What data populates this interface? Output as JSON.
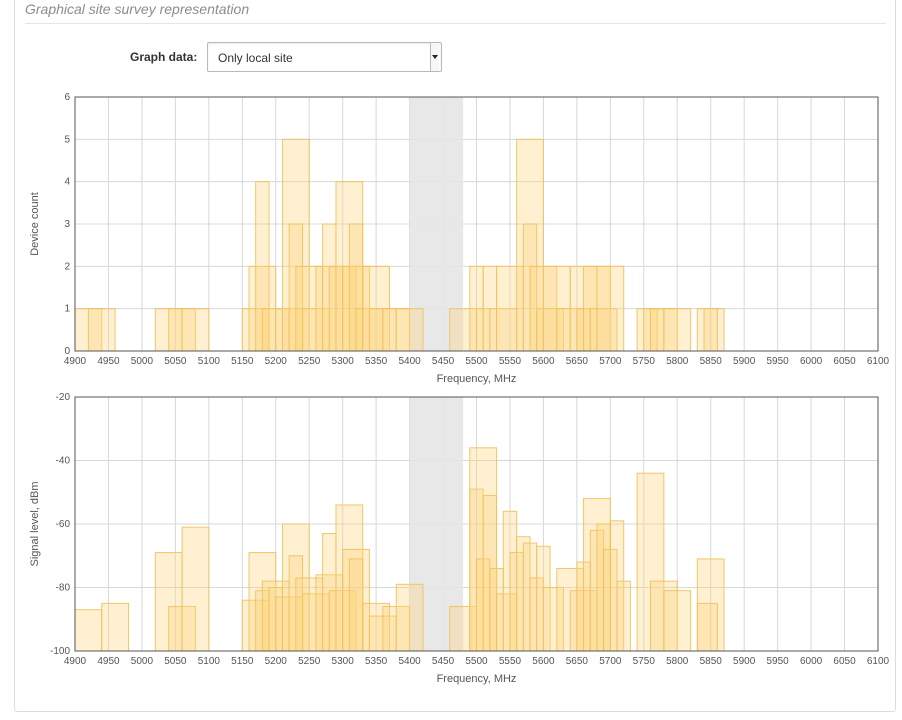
{
  "section_title": "Graphical site survey representation",
  "graph_data": {
    "label": "Graph data:",
    "selected": "Only local site"
  },
  "colors": {
    "bar_fill": "#fbd47a",
    "bar_stroke": "#f1c15a",
    "excluded_band": "#e6e6e6",
    "grid": "#d8d8d8"
  },
  "chart_data": [
    {
      "type": "bar",
      "xlabel": "Frequency, MHz",
      "ylabel": "Device count",
      "xlim": [
        4900,
        6100
      ],
      "ylim": [
        0,
        6
      ],
      "x_ticks": [
        4900,
        4950,
        5000,
        5050,
        5100,
        5150,
        5200,
        5250,
        5300,
        5350,
        5400,
        5450,
        5500,
        5550,
        5600,
        5650,
        5700,
        5750,
        5800,
        5850,
        5900,
        5950,
        6000,
        6050,
        6100
      ],
      "y_ticks": [
        0,
        1,
        2,
        3,
        4,
        5,
        6
      ],
      "grid": true,
      "excluded_band": [
        5400,
        5480
      ],
      "bars": [
        {
          "x0": 4900,
          "x1": 4940,
          "y": 1
        },
        {
          "x0": 4920,
          "x1": 4960,
          "y": 1
        },
        {
          "x0": 5020,
          "x1": 5060,
          "y": 1
        },
        {
          "x0": 5040,
          "x1": 5080,
          "y": 1
        },
        {
          "x0": 5060,
          "x1": 5100,
          "y": 1
        },
        {
          "x0": 5150,
          "x1": 5190,
          "y": 1
        },
        {
          "x0": 5160,
          "x1": 5200,
          "y": 2
        },
        {
          "x0": 5170,
          "x1": 5190,
          "y": 4
        },
        {
          "x0": 5180,
          "x1": 5220,
          "y": 1
        },
        {
          "x0": 5200,
          "x1": 5240,
          "y": 1
        },
        {
          "x0": 5210,
          "x1": 5250,
          "y": 5
        },
        {
          "x0": 5220,
          "x1": 5240,
          "y": 3
        },
        {
          "x0": 5230,
          "x1": 5270,
          "y": 2
        },
        {
          "x0": 5240,
          "x1": 5280,
          "y": 1
        },
        {
          "x0": 5260,
          "x1": 5300,
          "y": 2
        },
        {
          "x0": 5270,
          "x1": 5290,
          "y": 3
        },
        {
          "x0": 5280,
          "x1": 5320,
          "y": 2
        },
        {
          "x0": 5290,
          "x1": 5330,
          "y": 4
        },
        {
          "x0": 5300,
          "x1": 5340,
          "y": 2
        },
        {
          "x0": 5310,
          "x1": 5330,
          "y": 3
        },
        {
          "x0": 5320,
          "x1": 5360,
          "y": 1
        },
        {
          "x0": 5330,
          "x1": 5370,
          "y": 2
        },
        {
          "x0": 5340,
          "x1": 5380,
          "y": 1
        },
        {
          "x0": 5360,
          "x1": 5400,
          "y": 1
        },
        {
          "x0": 5380,
          "x1": 5420,
          "y": 1
        },
        {
          "x0": 5460,
          "x1": 5500,
          "y": 1
        },
        {
          "x0": 5490,
          "x1": 5510,
          "y": 2
        },
        {
          "x0": 5500,
          "x1": 5520,
          "y": 1
        },
        {
          "x0": 5510,
          "x1": 5530,
          "y": 2
        },
        {
          "x0": 5520,
          "x1": 5560,
          "y": 1
        },
        {
          "x0": 5530,
          "x1": 5570,
          "y": 2
        },
        {
          "x0": 5560,
          "x1": 5600,
          "y": 5
        },
        {
          "x0": 5570,
          "x1": 5590,
          "y": 3
        },
        {
          "x0": 5580,
          "x1": 5620,
          "y": 2
        },
        {
          "x0": 5590,
          "x1": 5630,
          "y": 1
        },
        {
          "x0": 5600,
          "x1": 5640,
          "y": 2
        },
        {
          "x0": 5620,
          "x1": 5660,
          "y": 1
        },
        {
          "x0": 5640,
          "x1": 5680,
          "y": 2
        },
        {
          "x0": 5650,
          "x1": 5670,
          "y": 1
        },
        {
          "x0": 5660,
          "x1": 5700,
          "y": 2
        },
        {
          "x0": 5670,
          "x1": 5710,
          "y": 1
        },
        {
          "x0": 5680,
          "x1": 5720,
          "y": 2
        },
        {
          "x0": 5740,
          "x1": 5780,
          "y": 1
        },
        {
          "x0": 5750,
          "x1": 5770,
          "y": 1
        },
        {
          "x0": 5760,
          "x1": 5800,
          "y": 1
        },
        {
          "x0": 5780,
          "x1": 5820,
          "y": 1
        },
        {
          "x0": 5830,
          "x1": 5870,
          "y": 1
        },
        {
          "x0": 5840,
          "x1": 5860,
          "y": 1
        }
      ]
    },
    {
      "type": "bar",
      "xlabel": "Frequency, MHz",
      "ylabel": "Signal level, dBm",
      "xlim": [
        4900,
        6100
      ],
      "ylim": [
        -100,
        -20
      ],
      "x_ticks": [
        4900,
        4950,
        5000,
        5050,
        5100,
        5150,
        5200,
        5250,
        5300,
        5350,
        5400,
        5450,
        5500,
        5550,
        5600,
        5650,
        5700,
        5750,
        5800,
        5850,
        5900,
        5950,
        6000,
        6050,
        6100
      ],
      "y_ticks": [
        -20,
        -40,
        -60,
        -80,
        -100
      ],
      "grid": true,
      "excluded_band": [
        5400,
        5480
      ],
      "bars": [
        {
          "x0": 4900,
          "x1": 4940,
          "y": -87
        },
        {
          "x0": 4940,
          "x1": 4980,
          "y": -85
        },
        {
          "x0": 5020,
          "x1": 5060,
          "y": -69
        },
        {
          "x0": 5040,
          "x1": 5080,
          "y": -86
        },
        {
          "x0": 5060,
          "x1": 5100,
          "y": -61
        },
        {
          "x0": 5150,
          "x1": 5190,
          "y": -84
        },
        {
          "x0": 5160,
          "x1": 5200,
          "y": -69
        },
        {
          "x0": 5170,
          "x1": 5190,
          "y": -81
        },
        {
          "x0": 5180,
          "x1": 5220,
          "y": -78
        },
        {
          "x0": 5190,
          "x1": 5210,
          "y": -80
        },
        {
          "x0": 5200,
          "x1": 5240,
          "y": -83
        },
        {
          "x0": 5210,
          "x1": 5250,
          "y": -60
        },
        {
          "x0": 5220,
          "x1": 5240,
          "y": -70
        },
        {
          "x0": 5230,
          "x1": 5270,
          "y": -77
        },
        {
          "x0": 5240,
          "x1": 5280,
          "y": -82
        },
        {
          "x0": 5260,
          "x1": 5300,
          "y": -76
        },
        {
          "x0": 5270,
          "x1": 5290,
          "y": -63
        },
        {
          "x0": 5280,
          "x1": 5320,
          "y": -81
        },
        {
          "x0": 5290,
          "x1": 5330,
          "y": -54
        },
        {
          "x0": 5300,
          "x1": 5340,
          "y": -68
        },
        {
          "x0": 5310,
          "x1": 5330,
          "y": -71
        },
        {
          "x0": 5330,
          "x1": 5370,
          "y": -85
        },
        {
          "x0": 5340,
          "x1": 5380,
          "y": -89
        },
        {
          "x0": 5360,
          "x1": 5400,
          "y": -86
        },
        {
          "x0": 5380,
          "x1": 5420,
          "y": -79
        },
        {
          "x0": 5460,
          "x1": 5500,
          "y": -86
        },
        {
          "x0": 5490,
          "x1": 5510,
          "y": -49
        },
        {
          "x0": 5490,
          "x1": 5530,
          "y": -36
        },
        {
          "x0": 5500,
          "x1": 5520,
          "y": -71
        },
        {
          "x0": 5510,
          "x1": 5530,
          "y": -51
        },
        {
          "x0": 5520,
          "x1": 5540,
          "y": -74
        },
        {
          "x0": 5530,
          "x1": 5560,
          "y": -82
        },
        {
          "x0": 5540,
          "x1": 5560,
          "y": -56
        },
        {
          "x0": 5550,
          "x1": 5570,
          "y": -69
        },
        {
          "x0": 5560,
          "x1": 5580,
          "y": -64
        },
        {
          "x0": 5570,
          "x1": 5590,
          "y": -66
        },
        {
          "x0": 5580,
          "x1": 5600,
          "y": -77
        },
        {
          "x0": 5590,
          "x1": 5610,
          "y": -67
        },
        {
          "x0": 5600,
          "x1": 5630,
          "y": -80
        },
        {
          "x0": 5620,
          "x1": 5660,
          "y": -74
        },
        {
          "x0": 5640,
          "x1": 5680,
          "y": -81
        },
        {
          "x0": 5650,
          "x1": 5670,
          "y": -72
        },
        {
          "x0": 5660,
          "x1": 5700,
          "y": -52
        },
        {
          "x0": 5670,
          "x1": 5690,
          "y": -62
        },
        {
          "x0": 5680,
          "x1": 5700,
          "y": -60
        },
        {
          "x0": 5690,
          "x1": 5710,
          "y": -68
        },
        {
          "x0": 5700,
          "x1": 5720,
          "y": -59
        },
        {
          "x0": 5710,
          "x1": 5730,
          "y": -78
        },
        {
          "x0": 5740,
          "x1": 5780,
          "y": -44
        },
        {
          "x0": 5760,
          "x1": 5800,
          "y": -78
        },
        {
          "x0": 5780,
          "x1": 5820,
          "y": -81
        },
        {
          "x0": 5830,
          "x1": 5870,
          "y": -71
        },
        {
          "x0": 5830,
          "x1": 5860,
          "y": -85
        }
      ]
    }
  ]
}
